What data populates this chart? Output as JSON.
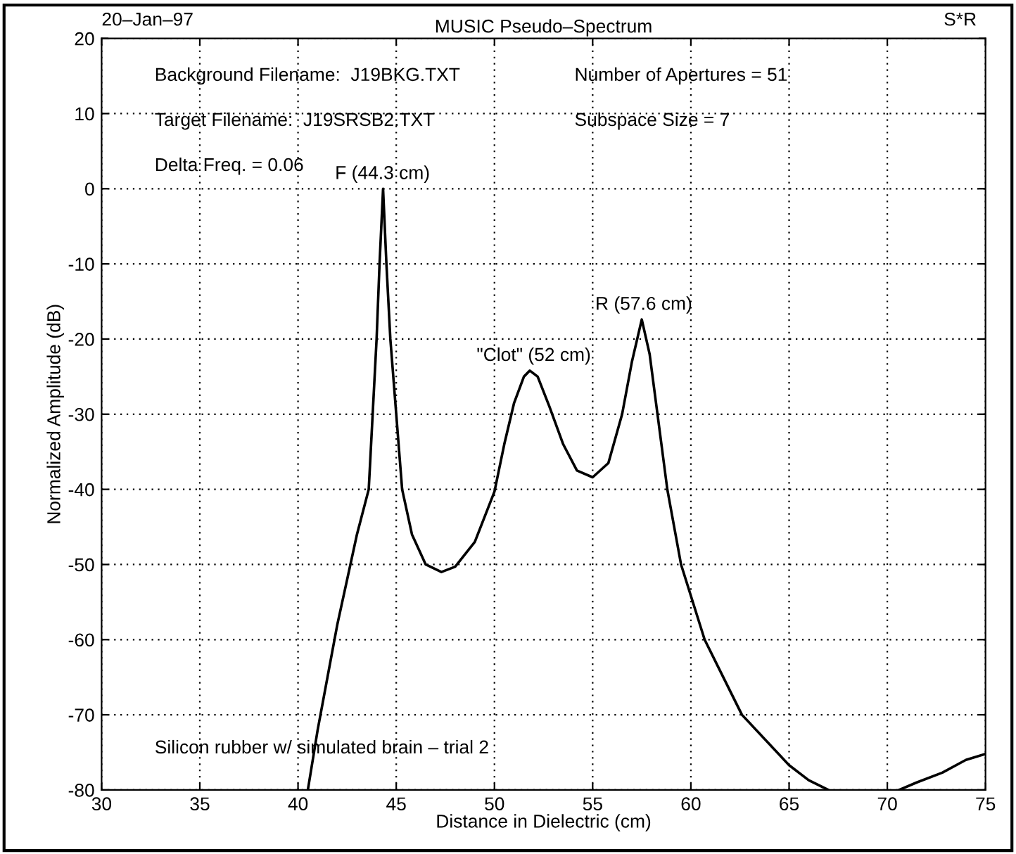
{
  "chart_data": {
    "type": "line",
    "title": "MUSIC Pseudo–Spectrum",
    "xlabel": "Distance in Dielectric (cm)",
    "ylabel": "Normalized Amplitude (dB)",
    "x": [
      40.5,
      41.0,
      41.5,
      42.0,
      42.5,
      43.0,
      43.6,
      44.0,
      44.15,
      44.33,
      44.5,
      44.7,
      45.0,
      45.3,
      45.8,
      46.5,
      47.3,
      48.0,
      49.0,
      50.0,
      50.5,
      51.0,
      51.5,
      51.8,
      52.2,
      52.8,
      53.5,
      54.2,
      55.0,
      55.8,
      56.5,
      57.0,
      57.5,
      57.9,
      58.3,
      58.8,
      59.5,
      60.7,
      62.6,
      65.0,
      66.0,
      67.0,
      68.0,
      69.0,
      70.0,
      70.6,
      71.5,
      72.8,
      74.0,
      75.0
    ],
    "series": [
      {
        "color": "#000000",
        "values": [
          -80,
          -72,
          -65,
          -58,
          -52,
          -46,
          -40,
          -20,
          -10,
          0,
          -10,
          -20,
          -30,
          -40,
          -46,
          -50,
          -51,
          -50.3,
          -47,
          -40.3,
          -34,
          -28.5,
          -25,
          -24.2,
          -25,
          -29,
          -34,
          -37.5,
          -38.4,
          -36.5,
          -30,
          -23,
          -17.4,
          -22,
          -30,
          -40,
          -50,
          -60,
          -70,
          -76.7,
          -78.7,
          -80,
          null,
          null,
          null,
          -80,
          -79,
          -77.7,
          -76,
          -75.2
        ]
      }
    ],
    "xlim": [
      30,
      75
    ],
    "xticks": [
      30,
      35,
      40,
      45,
      50,
      55,
      60,
      65,
      70,
      75
    ],
    "ylim": [
      -80,
      20
    ],
    "yticks": [
      -80,
      -70,
      -60,
      -50,
      -40,
      -30,
      -20,
      -10,
      0,
      10,
      20
    ],
    "grid": true,
    "legend": false,
    "marker": "none",
    "line_style": "solid",
    "annotations": [
      "20–Jan–97",
      "S*R",
      "Background Filename:  J19BKG.TXT",
      "Target Filename:  J19SRSB2.TXT",
      "Delta Freq. = 0.06",
      "Number of Apertures = 51",
      "Subspace Size = 7",
      "Silicon rubber w/ simulated brain – trial 2",
      {
        "text": "F (44.3 cm)",
        "x": 44.3,
        "y": 0
      },
      {
        "text": "\"Clot\" (52 cm)",
        "x": 52,
        "y": -24.2
      },
      {
        "text": "R (57.6 cm)",
        "x": 57.6,
        "y": -17.4
      }
    ]
  }
}
